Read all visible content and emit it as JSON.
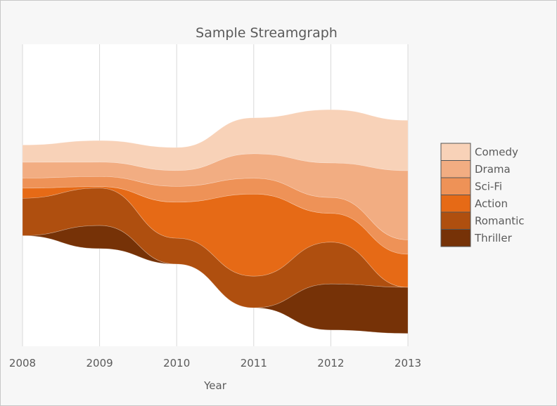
{
  "chart_data": {
    "type": "area",
    "subtype": "streamgraph",
    "title": "Sample Streamgraph",
    "xlabel": "Year",
    "ylabel": "",
    "x": [
      "2008",
      "2009",
      "2010",
      "2011",
      "2012",
      "2013"
    ],
    "series": [
      {
        "name": "Comedy",
        "color": "#f8d2b8",
        "values": [
          12,
          15,
          16,
          25,
          37,
          35
        ]
      },
      {
        "name": "Drama",
        "color": "#f2ad82",
        "values": [
          11,
          10,
          11,
          17,
          24,
          48
        ]
      },
      {
        "name": "Sci-Fi",
        "color": "#ee9257",
        "values": [
          7,
          7,
          11,
          11,
          11,
          10
        ]
      },
      {
        "name": "Action",
        "color": "#e66a16",
        "values": [
          7,
          1,
          25,
          57,
          20,
          23
        ]
      },
      {
        "name": "Romantic",
        "color": "#af4f0f",
        "values": [
          26,
          26,
          18,
          22,
          29,
          0
        ]
      },
      {
        "name": "Thriller",
        "color": "#763207",
        "values": [
          0,
          16,
          0,
          0,
          32,
          32
        ]
      }
    ],
    "legend_position": "right",
    "grid": "vertical"
  }
}
